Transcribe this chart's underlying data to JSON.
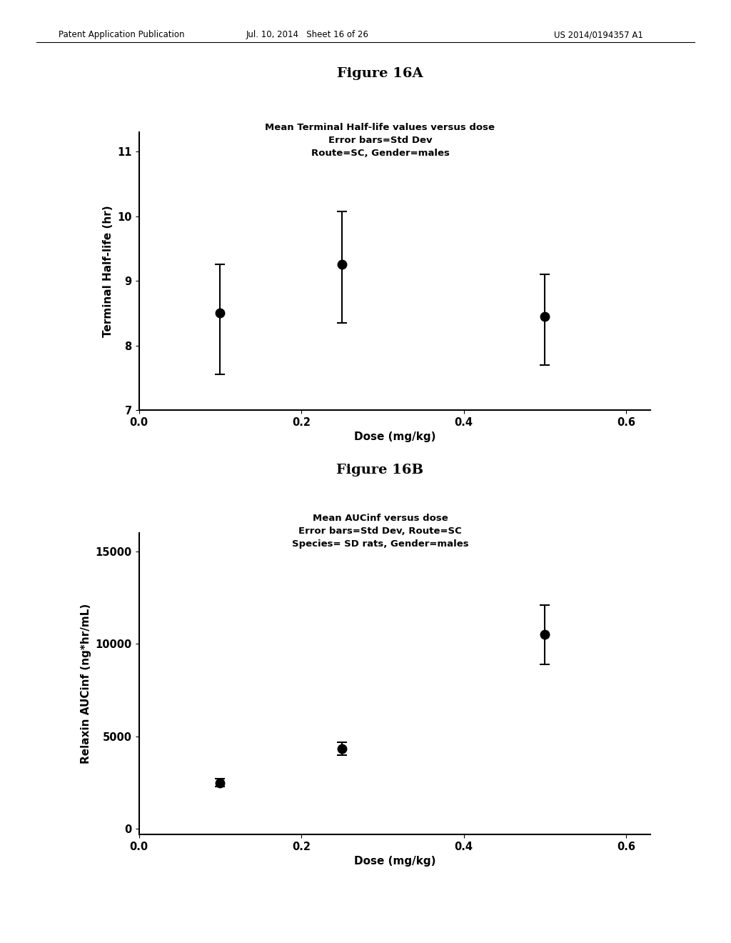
{
  "fig16A": {
    "title": "Figure 16A",
    "subtitle_line1": "Mean Terminal Half-life values versus dose",
    "subtitle_line2": "Error bars=Std Dev",
    "subtitle_line3": "Route=SC, Gender=males",
    "x": [
      0.1,
      0.25,
      0.5
    ],
    "y": [
      8.5,
      9.25,
      8.45
    ],
    "yerr_lower": [
      0.95,
      0.9,
      0.75
    ],
    "yerr_upper": [
      0.75,
      0.82,
      0.65
    ],
    "xlabel": "Dose (mg/kg)",
    "ylabel": "Terminal Half-life (hr)",
    "xlim": [
      0.0,
      0.63
    ],
    "ylim": [
      7.0,
      11.3
    ],
    "yticks": [
      7,
      8,
      9,
      10,
      11
    ],
    "xticks": [
      0.0,
      0.2,
      0.4,
      0.6
    ]
  },
  "fig16B": {
    "title": "Figure 16B",
    "subtitle_line1": "Mean AUCinf versus dose",
    "subtitle_line2": "Error bars=Std Dev, Route=SC",
    "subtitle_line3": "Species= SD rats, Gender=males",
    "x": [
      0.1,
      0.25,
      0.5
    ],
    "y": [
      2500,
      4350,
      10500
    ],
    "yerr_lower": [
      200,
      350,
      1600
    ],
    "yerr_upper": [
      200,
      350,
      1600
    ],
    "xlabel": "Dose (mg/kg)",
    "ylabel": "Relaxin AUCinf (ng*hr/mL)",
    "xlim": [
      0.0,
      0.63
    ],
    "ylim": [
      -300,
      16000
    ],
    "yticks": [
      0,
      5000,
      10000,
      15000
    ],
    "xticks": [
      0.0,
      0.2,
      0.4,
      0.6
    ]
  },
  "background_color": "#ffffff",
  "header_left": "Patent Application Publication",
  "header_mid": "Jul. 10, 2014   Sheet 16 of 26",
  "header_right": "US 2014/0194357 A1"
}
